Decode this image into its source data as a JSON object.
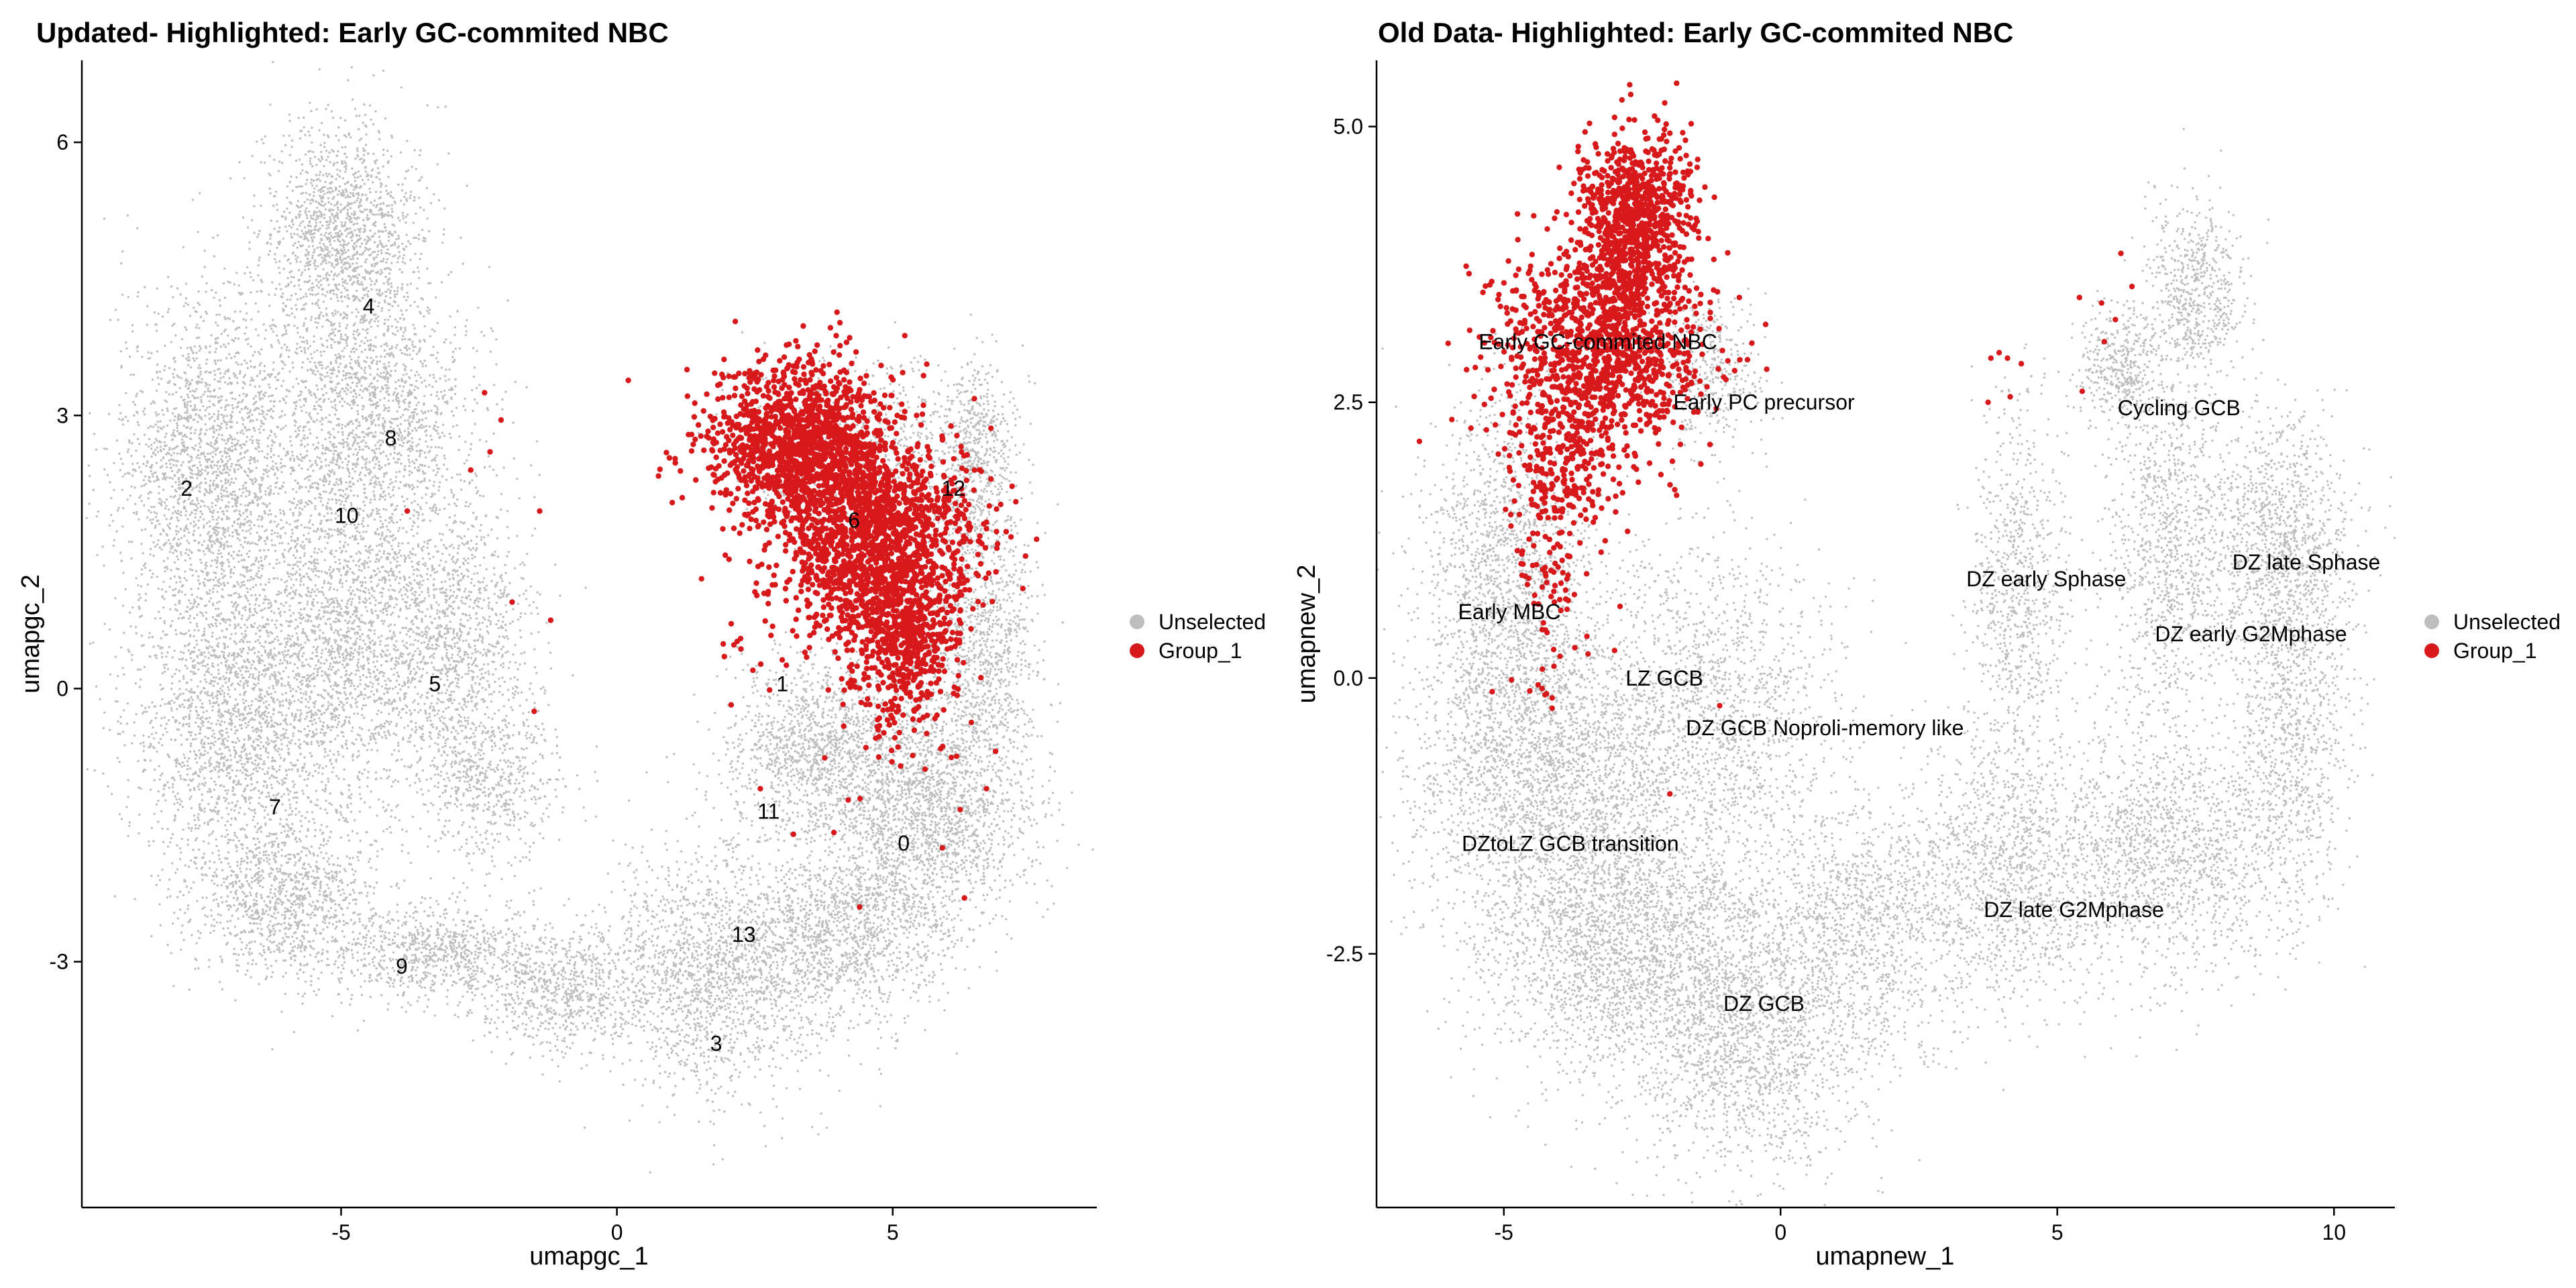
{
  "chart_data": [
    {
      "type": "scatter",
      "title": "Updated- Highlighted: Early GC-commited NBC",
      "xlabel": "umapgc_1",
      "ylabel": "umapgc_2",
      "xlim": [
        -9.7,
        8.7
      ],
      "ylim": [
        -5.7,
        6.9
      ],
      "xticks": [
        -5,
        0,
        5
      ],
      "xtick_labels": [
        "-5",
        "0",
        "5"
      ],
      "yticks": [
        -3,
        0,
        3,
        6
      ],
      "ytick_labels": [
        "-3",
        "0",
        "3",
        "6"
      ],
      "legend": [
        {
          "label": "Unselected",
          "color": "#BEBEBE"
        },
        {
          "label": "Group_1",
          "color": "#D7191C"
        }
      ],
      "legend_position": "right",
      "grid": false,
      "cluster_labels": [
        {
          "text": "0",
          "x": 5.2,
          "y": -1.7
        },
        {
          "text": "1",
          "x": 3.0,
          "y": 0.05
        },
        {
          "text": "2",
          "x": -7.8,
          "y": 2.2
        },
        {
          "text": "3",
          "x": 1.8,
          "y": -3.9
        },
        {
          "text": "4",
          "x": -4.5,
          "y": 4.2
        },
        {
          "text": "5",
          "x": -3.3,
          "y": 0.05
        },
        {
          "text": "6",
          "x": 4.3,
          "y": 1.85
        },
        {
          "text": "7",
          "x": -6.2,
          "y": -1.3
        },
        {
          "text": "8",
          "x": -4.1,
          "y": 2.75
        },
        {
          "text": "9",
          "x": -3.9,
          "y": -3.05
        },
        {
          "text": "10",
          "x": -4.9,
          "y": 1.9
        },
        {
          "text": "11",
          "x": 2.75,
          "y": -1.35
        },
        {
          "text": "12",
          "x": 6.1,
          "y": 2.2
        },
        {
          "text": "13",
          "x": 2.3,
          "y": -2.7
        }
      ],
      "series": [
        {
          "name": "Unselected",
          "color": "#BEBEBE",
          "regions": [
            {
              "cx": -5.0,
              "cy": 5.0,
              "rx": 1.3,
              "ry": 1.1,
              "n": 1400
            },
            {
              "cx": -7.3,
              "cy": 2.5,
              "rx": 1.6,
              "ry": 1.6,
              "n": 2000
            },
            {
              "cx": -4.4,
              "cy": 3.0,
              "rx": 1.6,
              "ry": 1.4,
              "n": 1600
            },
            {
              "cx": -7.0,
              "cy": -0.3,
              "rx": 1.6,
              "ry": 1.8,
              "n": 2000
            },
            {
              "cx": -5.0,
              "cy": 0.5,
              "rx": 1.5,
              "ry": 1.8,
              "n": 1800
            },
            {
              "cx": -3.0,
              "cy": 0.5,
              "rx": 1.3,
              "ry": 1.6,
              "n": 1300
            },
            {
              "cx": -6.0,
              "cy": -2.3,
              "rx": 1.5,
              "ry": 0.8,
              "n": 1000
            },
            {
              "cx": -3.3,
              "cy": -2.9,
              "rx": 1.6,
              "ry": 0.5,
              "n": 800
            },
            {
              "cx": -1.0,
              "cy": -3.3,
              "rx": 1.4,
              "ry": 0.6,
              "n": 700
            },
            {
              "cx": 1.8,
              "cy": -3.1,
              "rx": 2.0,
              "ry": 1.2,
              "n": 1800
            },
            {
              "cx": 4.2,
              "cy": -2.7,
              "rx": 1.7,
              "ry": 0.8,
              "n": 1100
            },
            {
              "cx": 5.5,
              "cy": -1.3,
              "rx": 1.8,
              "ry": 1.2,
              "n": 2200
            },
            {
              "cx": 3.5,
              "cy": -0.6,
              "rx": 1.4,
              "ry": 0.8,
              "n": 1000
            },
            {
              "cx": 6.6,
              "cy": 0.5,
              "rx": 0.9,
              "ry": 1.5,
              "n": 1000
            },
            {
              "cx": 6.5,
              "cy": 2.6,
              "rx": 0.6,
              "ry": 0.9,
              "n": 500
            },
            {
              "cx": 4.5,
              "cy": 2.6,
              "rx": 2.0,
              "ry": 0.9,
              "n": 700
            },
            {
              "cx": -2.2,
              "cy": -1.0,
              "rx": 1.2,
              "ry": 0.8,
              "n": 500
            }
          ]
        },
        {
          "name": "Group_1",
          "color": "#D7191C",
          "regions": [
            {
              "cx": 3.3,
              "cy": 2.7,
              "rx": 1.5,
              "ry": 0.8,
              "n": 1400
            },
            {
              "cx": 4.7,
              "cy": 1.6,
              "rx": 1.6,
              "ry": 1.0,
              "n": 1600
            },
            {
              "cx": 5.2,
              "cy": 0.5,
              "rx": 0.9,
              "ry": 0.8,
              "n": 500
            },
            {
              "cx": 5.2,
              "cy": -0.6,
              "rx": 1.4,
              "ry": 0.7,
              "n": 25
            },
            {
              "cx": 2.2,
              "cy": 0.4,
              "rx": 0.6,
              "ry": 0.6,
              "n": 12
            }
          ],
          "outliers": [
            [
              -2.4,
              3.25
            ],
            [
              -2.1,
              2.95
            ],
            [
              -2.3,
              2.6
            ],
            [
              -2.65,
              2.4
            ],
            [
              -3.8,
              1.95
            ],
            [
              -1.4,
              1.95
            ],
            [
              -1.9,
              0.95
            ],
            [
              -1.2,
              0.75
            ],
            [
              -1.5,
              -0.25
            ],
            [
              2.6,
              -1.1
            ],
            [
              3.2,
              -1.6
            ],
            [
              4.4,
              -2.4
            ],
            [
              6.3,
              -2.3
            ],
            [
              5.9,
              -1.75
            ],
            [
              6.7,
              -1.1
            ]
          ]
        }
      ]
    },
    {
      "type": "scatter",
      "title": "Old Data- Highlighted: Early GC-commited NBC",
      "xlabel": "umapnew_1",
      "ylabel": "umapnew_2",
      "xlim": [
        -7.3,
        11.1
      ],
      "ylim": [
        -4.8,
        5.6
      ],
      "xticks": [
        -5,
        0,
        5,
        10
      ],
      "xtick_labels": [
        "-5",
        "0",
        "5",
        "10"
      ],
      "yticks": [
        -2.5,
        0,
        2.5,
        5
      ],
      "ytick_labels": [
        "-2.5",
        "0.0",
        "2.5",
        "5.0"
      ],
      "legend": [
        {
          "label": "Unselected",
          "color": "#BEBEBE"
        },
        {
          "label": "Group_1",
          "color": "#D7191C"
        }
      ],
      "legend_position": "right",
      "grid": false,
      "cluster_labels": [
        {
          "text": "Early GC-commited NBC",
          "x": -3.3,
          "y": 3.05
        },
        {
          "text": "Early PC precursor",
          "x": -0.3,
          "y": 2.5
        },
        {
          "text": "Cycling GCB",
          "x": 7.2,
          "y": 2.45
        },
        {
          "text": "DZ early  Sphase",
          "x": 4.8,
          "y": 0.9
        },
        {
          "text": "DZ late Sphase",
          "x": 9.5,
          "y": 1.05
        },
        {
          "text": "DZ early G2Mphase",
          "x": 8.5,
          "y": 0.4
        },
        {
          "text": "Early MBC",
          "x": -4.9,
          "y": 0.6
        },
        {
          "text": "LZ GCB",
          "x": -2.1,
          "y": 0.0
        },
        {
          "text": "DZ GCB Noproli-memory like",
          "x": 0.8,
          "y": -0.45
        },
        {
          "text": "DZtoLZ GCB transition",
          "x": -3.8,
          "y": -1.5
        },
        {
          "text": "DZ late G2Mphase",
          "x": 5.3,
          "y": -2.1
        },
        {
          "text": "DZ GCB",
          "x": -0.3,
          "y": -2.95
        }
      ],
      "series": [
        {
          "name": "Unselected",
          "color": "#BEBEBE",
          "regions": [
            {
              "cx": -5.0,
              "cy": 1.0,
              "rx": 1.3,
              "ry": 1.4,
              "n": 1400
            },
            {
              "cx": -4.3,
              "cy": -0.8,
              "rx": 2.2,
              "ry": 1.4,
              "n": 2600
            },
            {
              "cx": -2.8,
              "cy": -2.4,
              "rx": 2.3,
              "ry": 1.1,
              "n": 2300
            },
            {
              "cx": -0.5,
              "cy": -3.2,
              "rx": 2.0,
              "ry": 1.2,
              "n": 1800
            },
            {
              "cx": -1.2,
              "cy": -0.3,
              "rx": 2.0,
              "ry": 1.3,
              "n": 1500
            },
            {
              "cx": 1.5,
              "cy": -2.2,
              "rx": 1.4,
              "ry": 1.0,
              "n": 900
            },
            {
              "cx": 4.0,
              "cy": -1.8,
              "rx": 1.8,
              "ry": 1.1,
              "n": 1300
            },
            {
              "cx": 7.0,
              "cy": -1.6,
              "rx": 2.2,
              "ry": 1.0,
              "n": 1500
            },
            {
              "cx": 9.2,
              "cy": -0.3,
              "rx": 1.0,
              "ry": 1.4,
              "n": 1000
            },
            {
              "cx": 9.0,
              "cy": 1.3,
              "rx": 1.2,
              "ry": 1.0,
              "n": 1000
            },
            {
              "cx": 7.0,
              "cy": 1.2,
              "rx": 1.0,
              "ry": 1.5,
              "n": 1000
            },
            {
              "cx": 4.3,
              "cy": 0.7,
              "rx": 0.8,
              "ry": 1.6,
              "n": 800
            },
            {
              "cx": 7.5,
              "cy": 3.5,
              "rx": 0.8,
              "ry": 0.7,
              "n": 600
            },
            {
              "cx": 6.2,
              "cy": 2.8,
              "rx": 0.8,
              "ry": 0.5,
              "n": 400
            },
            {
              "cx": -1.3,
              "cy": 2.8,
              "rx": 0.9,
              "ry": 0.7,
              "n": 400
            }
          ]
        },
        {
          "name": "Group_1",
          "color": "#D7191C",
          "regions": [
            {
              "cx": -2.6,
              "cy": 4.2,
              "rx": 0.9,
              "ry": 0.7,
              "n": 800
            },
            {
              "cx": -3.2,
              "cy": 3.0,
              "rx": 1.7,
              "ry": 0.9,
              "n": 1200
            },
            {
              "cx": -3.9,
              "cy": 1.9,
              "rx": 0.9,
              "ry": 0.6,
              "n": 200
            },
            {
              "cx": -4.1,
              "cy": 0.9,
              "rx": 0.5,
              "ry": 0.6,
              "n": 60
            },
            {
              "cx": -4.2,
              "cy": 0.0,
              "rx": 0.6,
              "ry": 0.4,
              "n": 15
            }
          ],
          "outliers": [
            [
              3.8,
              2.9
            ],
            [
              3.95,
              2.95
            ],
            [
              4.1,
              2.9
            ],
            [
              4.35,
              2.85
            ],
            [
              3.75,
              2.5
            ],
            [
              4.15,
              2.55
            ],
            [
              5.4,
              3.45
            ],
            [
              5.8,
              3.4
            ],
            [
              5.85,
              3.05
            ],
            [
              6.05,
              3.25
            ],
            [
              6.35,
              3.55
            ],
            [
              6.15,
              3.85
            ],
            [
              5.45,
              2.6
            ],
            [
              -0.25,
              2.8
            ],
            [
              -1.1,
              -0.25
            ],
            [
              -2.0,
              -1.05
            ],
            [
              -2.9,
              0.65
            ],
            [
              -3.0,
              0.25
            ]
          ]
        }
      ]
    }
  ]
}
